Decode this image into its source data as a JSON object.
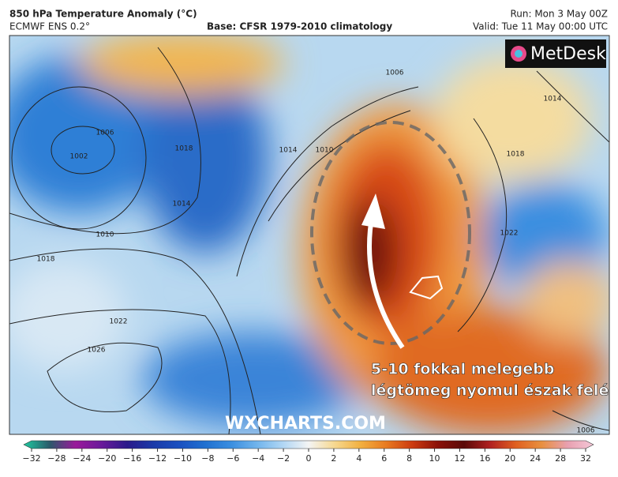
{
  "header": {
    "title": "850 hPa Temperature Anomaly (°C)",
    "model": "ECMWF ENS 0.2°",
    "base": "Base: CFSR 1979-2010 climatology",
    "run": "Run: Mon 3 May 00Z",
    "valid": "Valid: Tue 11 May 00:00 UTC"
  },
  "logo": "MetDesk",
  "isobar_labels": [
    "1006",
    "1002",
    "1010",
    "1018",
    "1022",
    "1026",
    "1018",
    "1014",
    "1010",
    "1014",
    "1018",
    "1022",
    "1014",
    "1006",
    "1006"
  ],
  "annotation": [
    "5-10 fokkal melegebb",
    "légtömeg nyomul észak felé"
  ],
  "watermark": "WXCHARTS.COM",
  "colorbar": {
    "ticks": [
      {
        "value": -32,
        "label": "−32"
      },
      {
        "value": -28,
        "label": "−28"
      },
      {
        "value": -24,
        "label": "−24"
      },
      {
        "value": -20,
        "label": "−20"
      },
      {
        "value": -16,
        "label": "−16"
      },
      {
        "value": -12,
        "label": "−12"
      },
      {
        "value": -10,
        "label": "−10"
      },
      {
        "value": -8,
        "label": "−8"
      },
      {
        "value": -6,
        "label": "−6"
      },
      {
        "value": -4,
        "label": "−4"
      },
      {
        "value": -2,
        "label": "−2"
      },
      0,
      2,
      4,
      6,
      8,
      10,
      12,
      16,
      20,
      24,
      28,
      32
    ],
    "colors": [
      "#1fc9a0",
      "#2a5a6a",
      "#9a1a9a",
      "#6a1a9a",
      "#2a1a8a",
      "#1a3aa8",
      "#1a50c0",
      "#2070d0",
      "#3a8ee0",
      "#70b4ec",
      "#b0d6f4",
      "#f4f4f4",
      "#f6d890",
      "#f2b040",
      "#e87a20",
      "#cc3a10",
      "#8a1008",
      "#5a0a08",
      "#b02020",
      "#e06020",
      "#e89040",
      "#e8a0b0",
      "#f4c8d8"
    ]
  }
}
